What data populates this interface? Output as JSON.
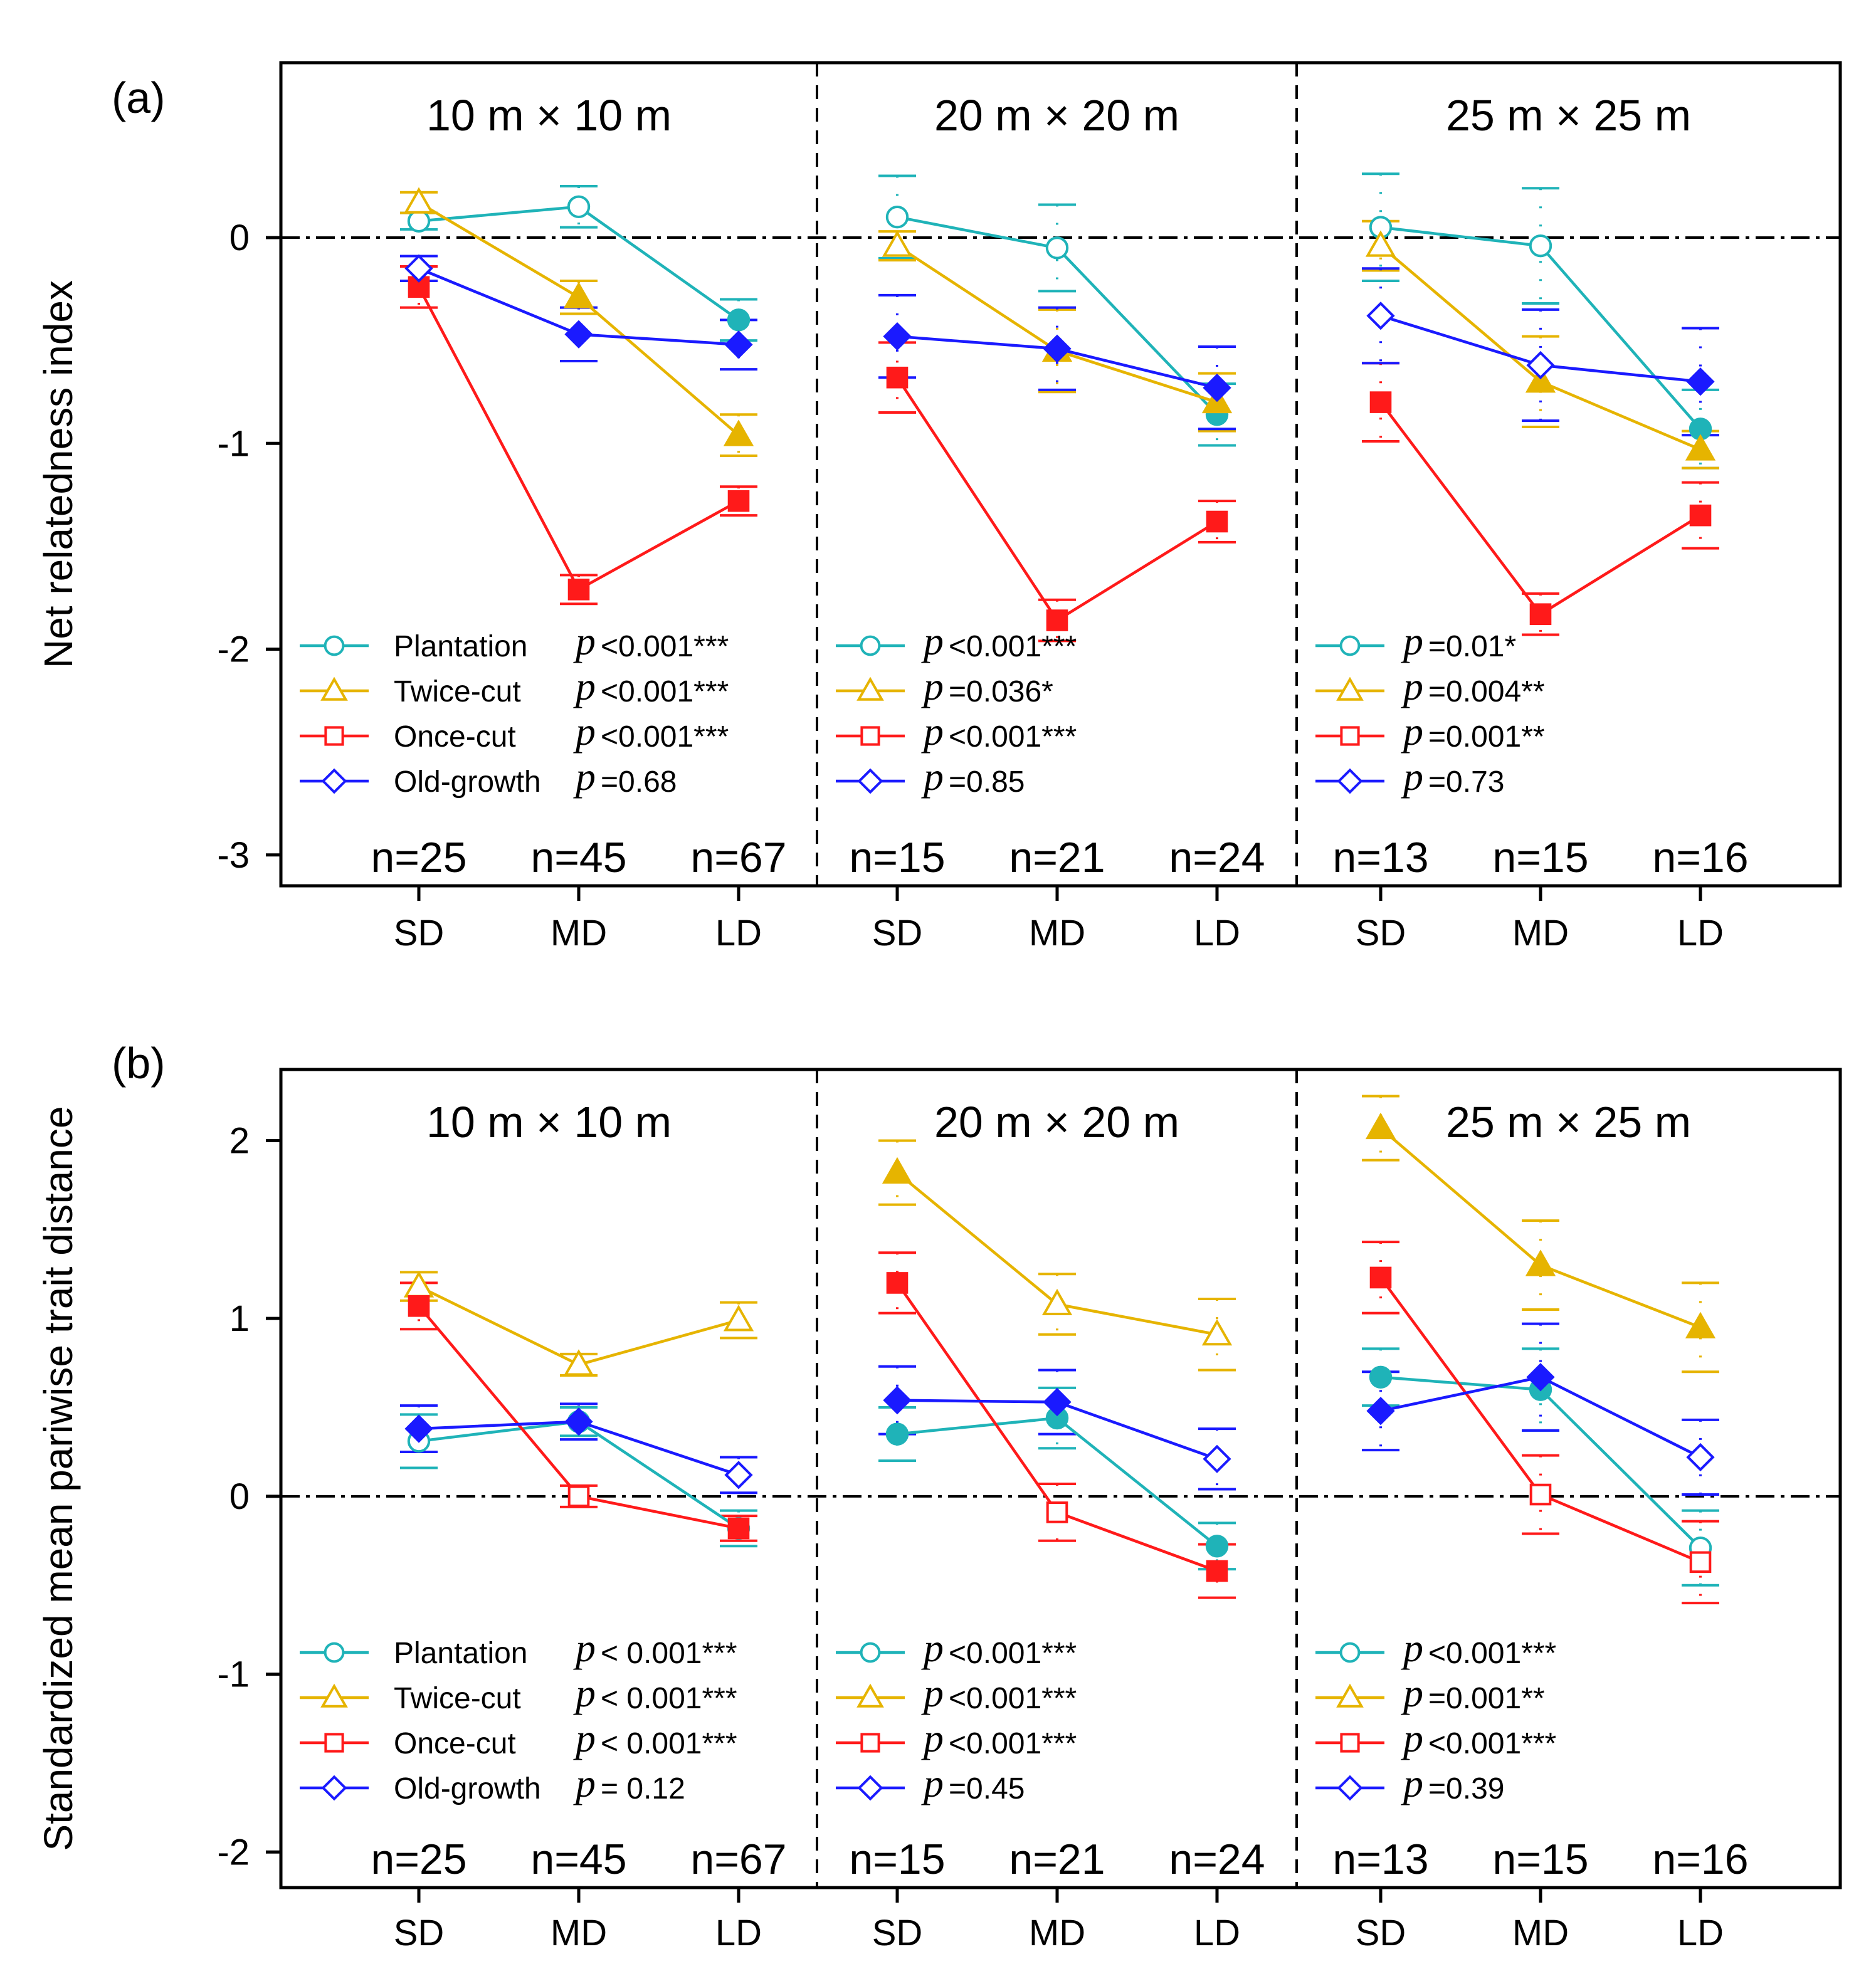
{
  "chart_data": {
    "type": "line",
    "categories": [
      "SD",
      "MD",
      "LD"
    ],
    "series_names": [
      "Plantation",
      "Twice-cut",
      "Once-cut",
      "Old-growth"
    ],
    "colors": {
      "Plantation": "#1fb3b8",
      "Twice-cut": "#e6b400",
      "Once-cut": "#ff1a1a",
      "Old-growth": "#1a1aff"
    },
    "legend_placement": "bottom-left of each facet",
    "panels": [
      {
        "tag": "(a)",
        "ylabel": "Net relatedness index",
        "ylim": [
          -3.15,
          0.85
        ],
        "yticks": [
          "0",
          "-1",
          "-2",
          "-3"
        ],
        "ytick_values": [
          0,
          -1,
          -2,
          -3
        ],
        "reference_line": 0,
        "facets": [
          {
            "title": "10 m × 10 m",
            "n": [
              "n=25",
              "n=45",
              "n=67"
            ],
            "series": [
              {
                "name": "Plantation",
                "values": [
                  0.08,
                  0.15,
                  -0.4
                ],
                "se": [
                  0.04,
                  0.1,
                  0.1
                ],
                "filled": [
                  false,
                  false,
                  true
                ],
                "p": "<0.001***"
              },
              {
                "name": "Twice-cut",
                "values": [
                  0.17,
                  -0.29,
                  -0.96
                ],
                "se": [
                  0.05,
                  0.08,
                  0.1
                ],
                "filled": [
                  false,
                  true,
                  true
                ],
                "p": "<0.001***"
              },
              {
                "name": "Once-cut",
                "values": [
                  -0.24,
                  -1.71,
                  -1.28
                ],
                "se": [
                  0.1,
                  0.07,
                  0.07
                ],
                "filled": [
                  true,
                  true,
                  true
                ],
                "p": "<0.001***"
              },
              {
                "name": "Old-growth",
                "values": [
                  -0.15,
                  -0.47,
                  -0.52
                ],
                "se": [
                  0.06,
                  0.13,
                  0.12
                ],
                "filled": [
                  false,
                  true,
                  true
                ],
                "p": "=0.68"
              }
            ]
          },
          {
            "title": "20 m × 20 m",
            "n": [
              "n=15",
              "n=21",
              "n=24"
            ],
            "series": [
              {
                "name": "Plantation",
                "values": [
                  0.1,
                  -0.05,
                  -0.86
                ],
                "se": [
                  0.2,
                  0.21,
                  0.15
                ],
                "filled": [
                  false,
                  false,
                  true
                ],
                "p": "<0.001***"
              },
              {
                "name": "Twice-cut",
                "values": [
                  -0.04,
                  -0.55,
                  -0.8
                ],
                "se": [
                  0.07,
                  0.2,
                  0.14
                ],
                "filled": [
                  false,
                  true,
                  true
                ],
                "p": "=0.036*"
              },
              {
                "name": "Once-cut",
                "values": [
                  -0.68,
                  -1.86,
                  -1.38
                ],
                "se": [
                  0.17,
                  0.1,
                  0.1
                ],
                "filled": [
                  true,
                  true,
                  true
                ],
                "p": "<0.001***"
              },
              {
                "name": "Old-growth",
                "values": [
                  -0.48,
                  -0.54,
                  -0.73
                ],
                "se": [
                  0.2,
                  0.2,
                  0.2
                ],
                "filled": [
                  true,
                  true,
                  true
                ],
                "p": "=0.85"
              }
            ]
          },
          {
            "title": "25 m × 25 m",
            "n": [
              "n=13",
              "n=15",
              "n=16"
            ],
            "series": [
              {
                "name": "Plantation",
                "values": [
                  0.05,
                  -0.04,
                  -0.93
                ],
                "se": [
                  0.26,
                  0.28,
                  0.19
                ],
                "filled": [
                  false,
                  false,
                  true
                ],
                "p": "=0.01*"
              },
              {
                "name": "Twice-cut",
                "values": [
                  -0.04,
                  -0.7,
                  -1.03
                ],
                "se": [
                  0.12,
                  0.22,
                  0.09
                ],
                "filled": [
                  false,
                  true,
                  true
                ],
                "p": "=0.004**"
              },
              {
                "name": "Once-cut",
                "values": [
                  -0.8,
                  -1.83,
                  -1.35
                ],
                "se": [
                  0.19,
                  0.1,
                  0.16
                ],
                "filled": [
                  true,
                  true,
                  true
                ],
                "p": "=0.001**"
              },
              {
                "name": "Old-growth",
                "values": [
                  -0.38,
                  -0.62,
                  -0.7
                ],
                "se": [
                  0.23,
                  0.27,
                  0.26
                ],
                "filled": [
                  false,
                  false,
                  true
                ],
                "p": "=0.73"
              }
            ]
          }
        ]
      },
      {
        "tag": "(b)",
        "ylabel": "Standardized mean pariwise trait distance",
        "ylim": [
          -2.2,
          2.4
        ],
        "yticks": [
          "2",
          "1",
          "0",
          "-1",
          "-2"
        ],
        "ytick_values": [
          2,
          1,
          0,
          -1,
          -2
        ],
        "reference_line": 0,
        "facets": [
          {
            "title": "10 m × 10 m",
            "n": [
              "n=25",
              "n=45",
              "n=67"
            ],
            "series": [
              {
                "name": "Plantation",
                "values": [
                  0.31,
                  0.42,
                  -0.18
                ],
                "se": [
                  0.15,
                  0.08,
                  0.1
                ],
                "filled": [
                  false,
                  true,
                  true
                ],
                "p": "< 0.001***"
              },
              {
                "name": "Twice-cut",
                "values": [
                  1.18,
                  0.74,
                  0.99
                ],
                "se": [
                  0.08,
                  0.06,
                  0.1
                ],
                "filled": [
                  false,
                  false,
                  false
                ],
                "p": "< 0.001***"
              },
              {
                "name": "Once-cut",
                "values": [
                  1.07,
                  0.0,
                  -0.18
                ],
                "se": [
                  0.13,
                  0.06,
                  0.07
                ],
                "filled": [
                  true,
                  false,
                  true
                ],
                "p": "< 0.001***"
              },
              {
                "name": "Old-growth",
                "values": [
                  0.38,
                  0.42,
                  0.12
                ],
                "se": [
                  0.13,
                  0.1,
                  0.1
                ],
                "filled": [
                  true,
                  true,
                  false
                ],
                "p": "= 0.12"
              }
            ]
          },
          {
            "title": "20 m × 20 m",
            "n": [
              "n=15",
              "n=21",
              "n=24"
            ],
            "series": [
              {
                "name": "Plantation",
                "values": [
                  0.35,
                  0.44,
                  -0.28
                ],
                "se": [
                  0.15,
                  0.17,
                  0.13
                ],
                "filled": [
                  true,
                  true,
                  true
                ],
                "p": "<0.001***"
              },
              {
                "name": "Twice-cut",
                "values": [
                  1.82,
                  1.08,
                  0.91
                ],
                "se": [
                  0.18,
                  0.17,
                  0.2
                ],
                "filled": [
                  true,
                  false,
                  false
                ],
                "p": "<0.001***"
              },
              {
                "name": "Once-cut",
                "values": [
                  1.2,
                  -0.09,
                  -0.42
                ],
                "se": [
                  0.17,
                  0.16,
                  0.15
                ],
                "filled": [
                  true,
                  false,
                  true
                ],
                "p": "<0.001***"
              },
              {
                "name": "Old-growth",
                "values": [
                  0.54,
                  0.53,
                  0.21
                ],
                "se": [
                  0.19,
                  0.18,
                  0.17
                ],
                "filled": [
                  true,
                  true,
                  false
                ],
                "p": "=0.45"
              }
            ]
          },
          {
            "title": "25 m × 25 m",
            "n": [
              "n=13",
              "n=15",
              "n=16"
            ],
            "series": [
              {
                "name": "Plantation",
                "values": [
                  0.67,
                  0.6,
                  -0.29
                ],
                "se": [
                  0.16,
                  0.23,
                  0.21
                ],
                "filled": [
                  true,
                  true,
                  false
                ],
                "p": "<0.001***"
              },
              {
                "name": "Twice-cut",
                "values": [
                  2.07,
                  1.3,
                  0.95
                ],
                "se": [
                  0.18,
                  0.25,
                  0.25
                ],
                "filled": [
                  true,
                  true,
                  true
                ],
                "p": "=0.001**"
              },
              {
                "name": "Once-cut",
                "values": [
                  1.23,
                  0.01,
                  -0.37
                ],
                "se": [
                  0.2,
                  0.22,
                  0.23
                ],
                "filled": [
                  true,
                  false,
                  false
                ],
                "p": "<0.001***"
              },
              {
                "name": "Old-growth",
                "values": [
                  0.48,
                  0.67,
                  0.22
                ],
                "se": [
                  0.22,
                  0.3,
                  0.21
                ],
                "filled": [
                  true,
                  true,
                  false
                ],
                "p": "=0.39"
              }
            ]
          }
        ]
      }
    ]
  }
}
